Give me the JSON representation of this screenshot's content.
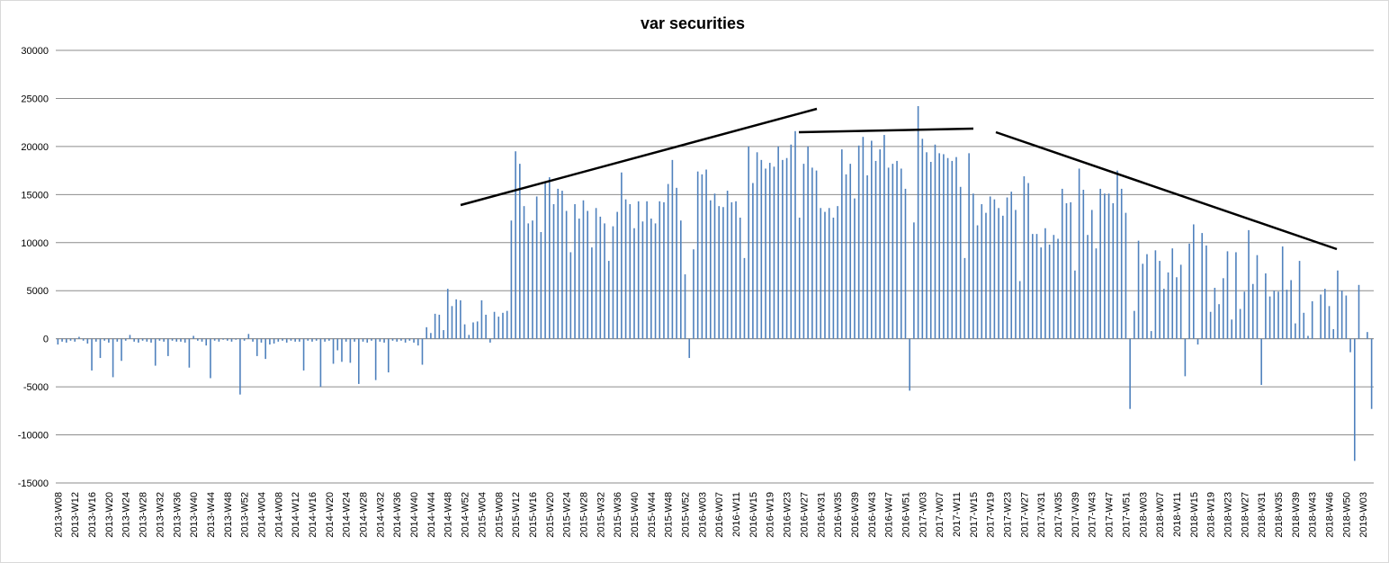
{
  "chart_data": {
    "type": "bar",
    "title": "var securities",
    "color": "#4f81bd",
    "grid": true,
    "ylim": [
      -15000,
      30000
    ],
    "yticks": [
      -15000,
      -10000,
      -5000,
      0,
      5000,
      10000,
      15000,
      20000,
      25000,
      30000
    ],
    "categories": [
      "2013-W08",
      null,
      null,
      null,
      "2013-W12",
      null,
      null,
      null,
      "2013-W16",
      null,
      null,
      null,
      "2013-W20",
      null,
      null,
      null,
      "2013-W24",
      null,
      null,
      null,
      "2013-W28",
      null,
      null,
      null,
      "2013-W32",
      null,
      null,
      null,
      "2013-W36",
      null,
      null,
      null,
      "2013-W40",
      null,
      null,
      null,
      "2013-W44",
      null,
      null,
      null,
      "2013-W48",
      null,
      null,
      null,
      "2013-W52",
      null,
      null,
      null,
      "2014-W04",
      null,
      null,
      null,
      "2014-W08",
      null,
      null,
      null,
      "2014-W12",
      null,
      null,
      null,
      "2014-W16",
      null,
      null,
      null,
      "2014-W20",
      null,
      null,
      null,
      "2014-W24",
      null,
      null,
      null,
      "2014-W28",
      null,
      null,
      null,
      "2014-W32",
      null,
      null,
      null,
      "2014-W36",
      null,
      null,
      null,
      "2014-W40",
      null,
      null,
      null,
      "2014-W44",
      null,
      null,
      null,
      "2014-W48",
      null,
      null,
      null,
      "2014-W52",
      null,
      null,
      null,
      "2015-W04",
      null,
      null,
      null,
      "2015-W08",
      null,
      null,
      null,
      "2015-W12",
      null,
      null,
      null,
      "2015-W16",
      null,
      null,
      null,
      "2015-W20",
      null,
      null,
      null,
      "2015-W24",
      null,
      null,
      null,
      "2015-W28",
      null,
      null,
      null,
      "2015-W32",
      null,
      null,
      null,
      "2015-W36",
      null,
      null,
      null,
      "2015-W40",
      null,
      null,
      null,
      "2015-W44",
      null,
      null,
      null,
      "2015-W48",
      null,
      null,
      null,
      "2015-W52",
      null,
      null,
      null,
      "2016-W03",
      null,
      null,
      null,
      "2016-W07",
      null,
      null,
      null,
      "2016-W11",
      null,
      null,
      null,
      "2016-W15",
      null,
      null,
      null,
      "2016-W19",
      null,
      null,
      null,
      "2016-W23",
      null,
      null,
      null,
      "2016-W27",
      null,
      null,
      null,
      "2016-W31",
      null,
      null,
      null,
      "2016-W35",
      null,
      null,
      null,
      "2016-W39",
      null,
      null,
      null,
      "2016-W43",
      null,
      null,
      null,
      "2016-W47",
      null,
      null,
      null,
      "2016-W51",
      null,
      null,
      null,
      "2017-W03",
      null,
      null,
      null,
      "2017-W07",
      null,
      null,
      null,
      "2017-W11",
      null,
      null,
      null,
      "2017-W15",
      null,
      null,
      null,
      "2017-W19",
      null,
      null,
      null,
      "2017-W23",
      null,
      null,
      null,
      "2017-W27",
      null,
      null,
      null,
      "2017-W31",
      null,
      null,
      null,
      "2017-W35",
      null,
      null,
      null,
      "2017-W39",
      null,
      null,
      null,
      "2017-W43",
      null,
      null,
      null,
      "2017-W47",
      null,
      null,
      null,
      "2017-W51",
      null,
      null,
      null,
      "2018-W03",
      null,
      null,
      null,
      "2018-W07",
      null,
      null,
      null,
      "2018-W11",
      null,
      null,
      null,
      "2018-W15",
      null,
      null,
      null,
      "2018-W19",
      null,
      null,
      null,
      "2018-W23",
      null,
      null,
      null,
      "2018-W27",
      null,
      null,
      null,
      "2018-W31",
      null,
      null,
      null,
      "2018-W35",
      null,
      null,
      null,
      "2018-W39",
      null,
      null,
      null,
      "2018-W43",
      null,
      null,
      null,
      "2018-W46",
      null,
      null,
      null,
      "2018-W50",
      null,
      null,
      null,
      "2019-W03",
      null,
      null
    ],
    "values": [
      -600,
      -300,
      -400,
      -200,
      -300,
      200,
      -200,
      -500,
      -3300,
      -300,
      -2000,
      -200,
      -400,
      -4000,
      -300,
      -2300,
      -200,
      400,
      -300,
      -400,
      -200,
      -300,
      -400,
      -2800,
      -200,
      -300,
      -1800,
      -200,
      -300,
      -300,
      -400,
      -3000,
      300,
      -200,
      -300,
      -700,
      -4100,
      -200,
      -300,
      -100,
      -200,
      -300,
      -100,
      -5800,
      -200,
      500,
      -300,
      -1800,
      -400,
      -2100,
      -600,
      -500,
      -300,
      -200,
      -400,
      -200,
      -300,
      -300,
      -3300,
      -200,
      -300,
      -200,
      -5000,
      -300,
      -200,
      -2600,
      -1200,
      -2400,
      -300,
      -2500,
      -300,
      -4700,
      -300,
      -400,
      -200,
      -4300,
      -300,
      -400,
      -3500,
      -200,
      -300,
      -200,
      -400,
      -200,
      -400,
      -700,
      -2700,
      1200,
      600,
      2600,
      2500,
      900,
      5200,
      3400,
      4100,
      4000,
      1500,
      400,
      1700,
      1800,
      4000,
      2500,
      -400,
      2800,
      2300,
      2700,
      2900,
      12300,
      19500,
      18200,
      13800,
      12000,
      12300,
      14800,
      11100,
      16300,
      16800,
      14000,
      15600,
      15400,
      13300,
      9000,
      14000,
      12500,
      14400,
      13300,
      9500,
      13600,
      12700,
      12000,
      8100,
      11700,
      13200,
      17300,
      14500,
      14000,
      11500,
      14300,
      12200,
      14300,
      12500,
      12000,
      14300,
      14200,
      16100,
      18600,
      15700,
      12300,
      6700,
      -2000,
      9300,
      17400,
      17100,
      17600,
      14400,
      15100,
      13800,
      13700,
      15400,
      14200,
      14300,
      12600,
      8400,
      20000,
      16200,
      19400,
      18600,
      17700,
      18300,
      17900,
      20000,
      18600,
      18800,
      20200,
      21600,
      12600,
      18200,
      20000,
      17800,
      17500,
      13600,
      13200,
      13600,
      12600,
      13800,
      19700,
      17100,
      18200,
      14600,
      20100,
      21000,
      17000,
      20600,
      18500,
      19700,
      21200,
      17800,
      18200,
      18500,
      17700,
      15600,
      -5400,
      12100,
      24200,
      20800,
      19400,
      18400,
      20200,
      19300,
      19200,
      18800,
      18500,
      18900,
      15800,
      8400,
      19300,
      15100,
      11800,
      14000,
      13100,
      14800,
      14500,
      13600,
      12800,
      14700,
      15300,
      13400,
      6000,
      16900,
      16200,
      10900,
      10900,
      9500,
      11500,
      9800,
      10800,
      10400,
      15600,
      14100,
      14200,
      7100,
      17700,
      15500,
      10800,
      13400,
      9400,
      15600,
      15100,
      15100,
      14100,
      17500,
      15600,
      13100,
      -7300,
      2900,
      10200,
      7800,
      8800,
      800,
      9200,
      8100,
      5200,
      6900,
      9400,
      6400,
      7700,
      -3900,
      9900,
      11900,
      -600,
      11000,
      9700,
      2800,
      5300,
      3600,
      6300,
      9100,
      2000,
      9000,
      3100,
      4900,
      11300,
      5700,
      8700,
      -4800,
      6800,
      4400,
      5000,
      4900,
      9600,
      5100,
      6100,
      1600,
      8100,
      2700,
      300,
      3900,
      0,
      4600,
      5200,
      3400,
      1000,
      7100,
      5000,
      4500,
      -1400,
      -12700,
      5600,
      0,
      700,
      -7300
    ]
  }
}
